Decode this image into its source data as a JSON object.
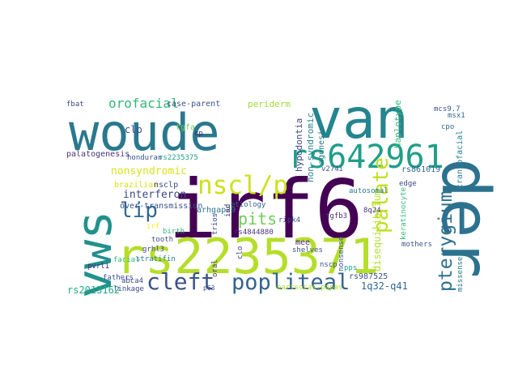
{
  "word_cloud": {
    "words": [
      {
        "text": "woude",
        "color": "#2a788e"
      },
      {
        "text": "van",
        "color": "#25858e"
      },
      {
        "text": "irf6",
        "color": "#440154"
      },
      {
        "text": "der",
        "color": "#2c728e"
      },
      {
        "text": "vws",
        "color": "#21918c"
      },
      {
        "text": "rs2235371",
        "color": "#b5de2b"
      },
      {
        "text": "rs642961",
        "color": "#1f9e89"
      },
      {
        "text": "nscl/p",
        "color": "#cde11d"
      },
      {
        "text": "popliteal",
        "color": "#33638d"
      },
      {
        "text": "cleft",
        "color": "#3b528b"
      },
      {
        "text": "pterygium",
        "color": "#2d708e"
      },
      {
        "text": "palate",
        "color": "#c2df23"
      },
      {
        "text": "lip",
        "color": "#31688e"
      },
      {
        "text": "pits",
        "color": "#6ece58"
      },
      {
        "text": "orofacial",
        "color": "#35b779"
      },
      {
        "text": "nonsyndromic",
        "color": "#d8e219"
      },
      {
        "text": "interferon",
        "color": "#3e4989"
      },
      {
        "text": "disequilibrium",
        "color": "#b5de2b"
      },
      {
        "text": "1q32-q41",
        "color": "#31688e"
      },
      {
        "text": "rs2013162",
        "color": "#22a884"
      },
      {
        "text": "hypodontia",
        "color": "#404688"
      },
      {
        "text": "non-syndromic",
        "color": "#26828e"
      },
      {
        "text": "agenesis",
        "color": "#2a788e"
      },
      {
        "text": "haplotype",
        "color": "#35b779"
      },
      {
        "text": "craniofacial",
        "color": "#277f8e"
      },
      {
        "text": "case-parent",
        "color": "#3b528b"
      },
      {
        "text": "periderm",
        "color": "#a0da39"
      },
      {
        "text": "tgfa",
        "color": "#6ece58"
      },
      {
        "text": "clp",
        "color": "#3e4989"
      },
      {
        "text": "honduran",
        "color": "#3b528b"
      },
      {
        "text": "rs2235375",
        "color": "#1f9e89"
      },
      {
        "text": "palatogenesis",
        "color": "#46337e"
      },
      {
        "text": "brazilian",
        "color": "#d8e219"
      },
      {
        "text": "nsclp",
        "color": "#3e4989"
      },
      {
        "text": "over-transmission",
        "color": "#3b528b"
      },
      {
        "text": "etiology",
        "color": "#31688e"
      },
      {
        "text": "arhgap29",
        "color": "#2a788e"
      },
      {
        "text": "trios",
        "color": "#3e4989"
      },
      {
        "text": "iad",
        "color": "#46337e"
      },
      {
        "text": "ripk4",
        "color": "#3b528b"
      },
      {
        "text": "rs4844880",
        "color": "#46337e"
      },
      {
        "text": "grhl3",
        "color": "#3e4989"
      },
      {
        "text": "tooth",
        "color": "#3b528b"
      },
      {
        "text": "birth",
        "color": "#35b779"
      },
      {
        "text": "irf",
        "color": "#fde725"
      },
      {
        "text": "mee",
        "color": "#482878"
      },
      {
        "text": "shelves",
        "color": "#3b528b"
      },
      {
        "text": "pvrl1",
        "color": "#482878"
      },
      {
        "text": "fathers",
        "color": "#3b528b"
      },
      {
        "text": "abca4",
        "color": "#3e4989"
      },
      {
        "text": "facial",
        "color": "#35b779"
      },
      {
        "text": "stratifin",
        "color": "#2a788e"
      },
      {
        "text": "linkage",
        "color": "#3e4989"
      },
      {
        "text": "p63",
        "color": "#3b528b"
      },
      {
        "text": "oral",
        "color": "#46337e"
      },
      {
        "text": "bartsocas-papas",
        "color": "#b5de2b"
      },
      {
        "text": "rs987525",
        "color": "#3b528b"
      },
      {
        "text": "nscp",
        "color": "#3b528b"
      },
      {
        "text": "pps",
        "color": "#22a884"
      },
      {
        "text": "autosomal",
        "color": "#2a788e"
      },
      {
        "text": "keratinocyte",
        "color": "#35b779"
      },
      {
        "text": "rs861019",
        "color": "#31688e"
      },
      {
        "text": "edge",
        "color": "#3e4989"
      },
      {
        "text": "mothers",
        "color": "#3b528b"
      },
      {
        "text": "missense",
        "color": "#2a788e"
      },
      {
        "text": "nonsense",
        "color": "#3b528b"
      },
      {
        "text": "8q24",
        "color": "#46337e"
      },
      {
        "text": "tgfb3",
        "color": "#46337e"
      },
      {
        "text": "v274i",
        "color": "#3b528b"
      },
      {
        "text": "msx1",
        "color": "#31688e"
      },
      {
        "text": "fbat",
        "color": "#3e4989"
      },
      {
        "text": "cp",
        "color": "#482878"
      },
      {
        "text": "mcs9.7",
        "color": "#3b528b"
      },
      {
        "text": "cpo",
        "color": "#31688e"
      },
      {
        "text": "clo",
        "color": "#46337e"
      }
    ]
  }
}
